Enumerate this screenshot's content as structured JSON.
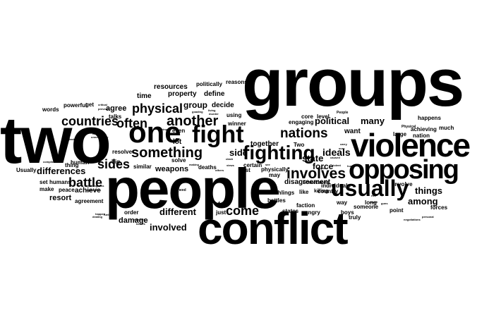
{
  "word_cloud": {
    "text_color": "#000000",
    "background_color": "#ffffff",
    "words": {
      "groups": "groups",
      "two": "two",
      "people": "people",
      "conflict": "conflict",
      "violence": "violence",
      "opposing": "opposing",
      "usually": "usually",
      "fighting": "fighting",
      "one": "one",
      "fight": "fight",
      "another": "another",
      "something": "something",
      "nations": "nations",
      "involves": "involves",
      "often": "often",
      "countries": "countries",
      "physical": "physical",
      "come": "come",
      "sides": "sides",
      "battle": "battle",
      "differences": "differences",
      "different": "different",
      "involved": "involved",
      "political": "political",
      "many": "many",
      "ideals": "ideals",
      "state": "state",
      "side": "side",
      "group": "group",
      "things": "things",
      "among": "among",
      "force": "force",
      "agree": "agree",
      "weapons": "weapons",
      "damage": "damage",
      "resort": "resort",
      "achieve": "achieve",
      "together": "together",
      "disagreement": "disagreement",
      "want": "want",
      "resources": "resources",
      "property": "property",
      "define": "define",
      "decide": "decide",
      "lot": "lot",
      "time": "time",
      "talks": "talks",
      "words": "words",
      "powerful": "powerful",
      "get": "get",
      "politically": "politically",
      "reasons": "reasons",
      "using": "using",
      "winner": "winner",
      "core": "core",
      "level": "level",
      "engaging": "engaging",
      "happens": "happens",
      "much": "much",
      "nation": "nation",
      "achieving": "achieving",
      "large": "large",
      "individuals": "individuals",
      "country": "country",
      "Two": "Two",
      "Sometimes": "Sometimes",
      "earthlings": "earthlings",
      "faction": "faction",
      "killing": "killing",
      "angry": "angry",
      "long": "long",
      "truly": "truly",
      "someone": "someone",
      "boys": "boys",
      "point": "point",
      "forces": "forces",
      "involve": "involve",
      "way": "way",
      "like": "like",
      "battles": "battles",
      "states": "states",
      "just": "just",
      "feel": "feel",
      "certain": "certain",
      "last": "last",
      "may": "may",
      "physically": "physically",
      "deaths": "deaths",
      "solve": "solve",
      "even": "even",
      "similar": "similar",
      "resolve": "resolve",
      "big": "big",
      "thing": "thing",
      "humans": "humans",
      "human": "human",
      "Usually": "Usually",
      "set": "set",
      "make": "make",
      "peace": "peace",
      "agreement": "agreement",
      "order": "order",
      "need": "need",
      "People": "People",
      "Physical": "Physical",
      "result": "result",
      "personal": "personal",
      "negotiations": "negotiations",
      "happen": "happen",
      "unwillingness": "unwillingness",
      "capabilities": "capabilities",
      "complicated": "complicated",
      "dealing": "dealing",
      "unnecessary": "unnecessary",
      "critical": "critical",
      "prevents": "prevents",
      "fueled": "fueled",
      "intellect": "intellect",
      "beliefs": "beliefs",
      "murder": "murder",
      "goading": "goading",
      "living": "living",
      "trying": "trying",
      "making": "making",
      "others": "others",
      "views": "views",
      "clash": "clash",
      "stupid": "stupid",
      "violent": "violent",
      "caused": "caused",
      "hurt": "hurt",
      "evil": "evil",
      "guns": "guns",
      "civil": "civil",
      "task": "task",
      "war": "war",
      "sure": "sure",
      "carry": "carry",
      "see": "see"
    }
  }
}
